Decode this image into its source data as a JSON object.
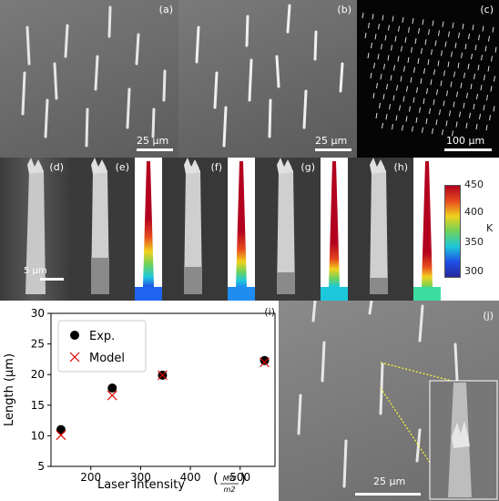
{
  "panels": {
    "a": {
      "label": "(a)",
      "scale": "25 μm"
    },
    "b": {
      "label": "(b)",
      "scale": "25 μm"
    },
    "c": {
      "label": "(c)",
      "scale": "100 μm"
    },
    "d": {
      "label": "(d)",
      "scale": "5 μm"
    },
    "e": {
      "label": "(e)"
    },
    "f": {
      "label": "(f)"
    },
    "g": {
      "label": "(g)"
    },
    "h": {
      "label": "(h)"
    },
    "i": {
      "label": "(i)"
    },
    "j": {
      "label": "(j)",
      "scale": "25 μm"
    }
  },
  "colorbar": {
    "unit": "K",
    "ticks": [
      "450",
      "400",
      "350",
      "300"
    ],
    "colors": [
      "#b2001e",
      "#e64b1e",
      "#f0d21e",
      "#6ed25a",
      "#1ec8dc",
      "#1e50e6",
      "#2828a0"
    ]
  },
  "chart_data": {
    "type": "scatter",
    "xlabel": "Laser Intensity",
    "xlabel_unit_num": "MW",
    "xlabel_unit_den": "m2",
    "ylabel": "Length (μm)",
    "xlim": [
      120,
      570
    ],
    "ylim": [
      5,
      30
    ],
    "xticks": [
      200,
      300,
      400,
      500
    ],
    "yticks": [
      5,
      10,
      15,
      20,
      25,
      30
    ],
    "legend_position": "top-left",
    "series": [
      {
        "name": "Exp.",
        "marker": "circle",
        "color": "#000000",
        "x": [
          140,
          243,
          344,
          549
        ],
        "y": [
          11.0,
          17.8,
          19.9,
          22.3
        ]
      },
      {
        "name": "Model",
        "marker": "x",
        "color": "#e00000",
        "x": [
          140,
          243,
          344,
          549
        ],
        "y": [
          10.1,
          16.6,
          19.9,
          22.0
        ]
      }
    ]
  }
}
